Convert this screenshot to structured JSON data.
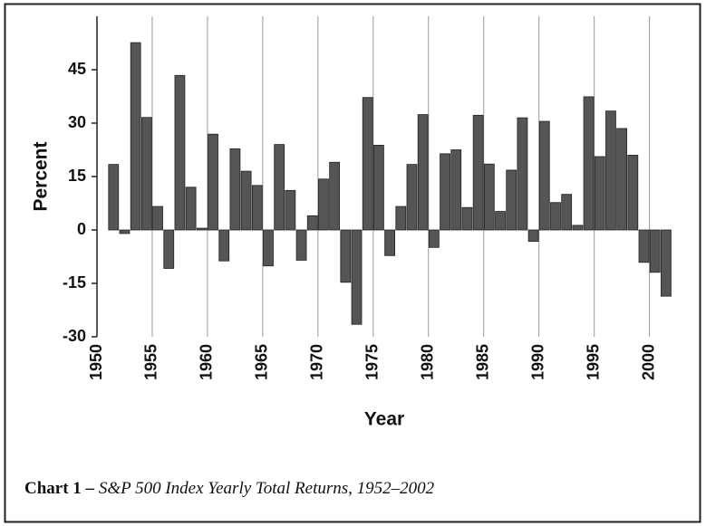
{
  "chart_data": {
    "type": "bar",
    "x_label": "Year",
    "y_label": "Percent",
    "caption": {
      "label": "Chart 1 –",
      "text": "S&P 500 Index Yearly Total Returns, 1952–2002"
    },
    "x": [
      1952,
      1953,
      1954,
      1955,
      1956,
      1957,
      1958,
      1959,
      1960,
      1961,
      1962,
      1963,
      1964,
      1965,
      1966,
      1967,
      1968,
      1969,
      1970,
      1971,
      1972,
      1973,
      1974,
      1975,
      1976,
      1977,
      1978,
      1979,
      1980,
      1981,
      1982,
      1983,
      1984,
      1985,
      1986,
      1987,
      1988,
      1989,
      1990,
      1991,
      1992,
      1993,
      1994,
      1995,
      1996,
      1997,
      1998,
      1999,
      2000,
      2001,
      2002
    ],
    "values": [
      18.4,
      -1.0,
      52.6,
      31.6,
      6.6,
      -10.8,
      43.4,
      12.0,
      0.5,
      26.9,
      -8.7,
      22.8,
      16.5,
      12.5,
      -10.1,
      24.0,
      11.1,
      -8.5,
      4.0,
      14.3,
      19.0,
      -14.7,
      -26.5,
      37.2,
      23.8,
      -7.2,
      6.6,
      18.4,
      32.4,
      -4.9,
      21.4,
      22.5,
      6.3,
      32.2,
      18.5,
      5.2,
      16.8,
      31.5,
      -3.2,
      30.5,
      7.7,
      10.0,
      1.3,
      37.4,
      20.6,
      33.4,
      28.5,
      21.0,
      -9.1,
      -11.9,
      -18.6
    ],
    "color": "#555555",
    "xlim": [
      1950,
      2002
    ],
    "xticks": [
      1950,
      1955,
      1960,
      1965,
      1970,
      1975,
      1980,
      1985,
      1990,
      1995,
      2000
    ],
    "ylim": [
      -30,
      60
    ],
    "yticks": [
      -30,
      -15,
      0,
      15,
      30,
      45
    ],
    "grid": true
  }
}
